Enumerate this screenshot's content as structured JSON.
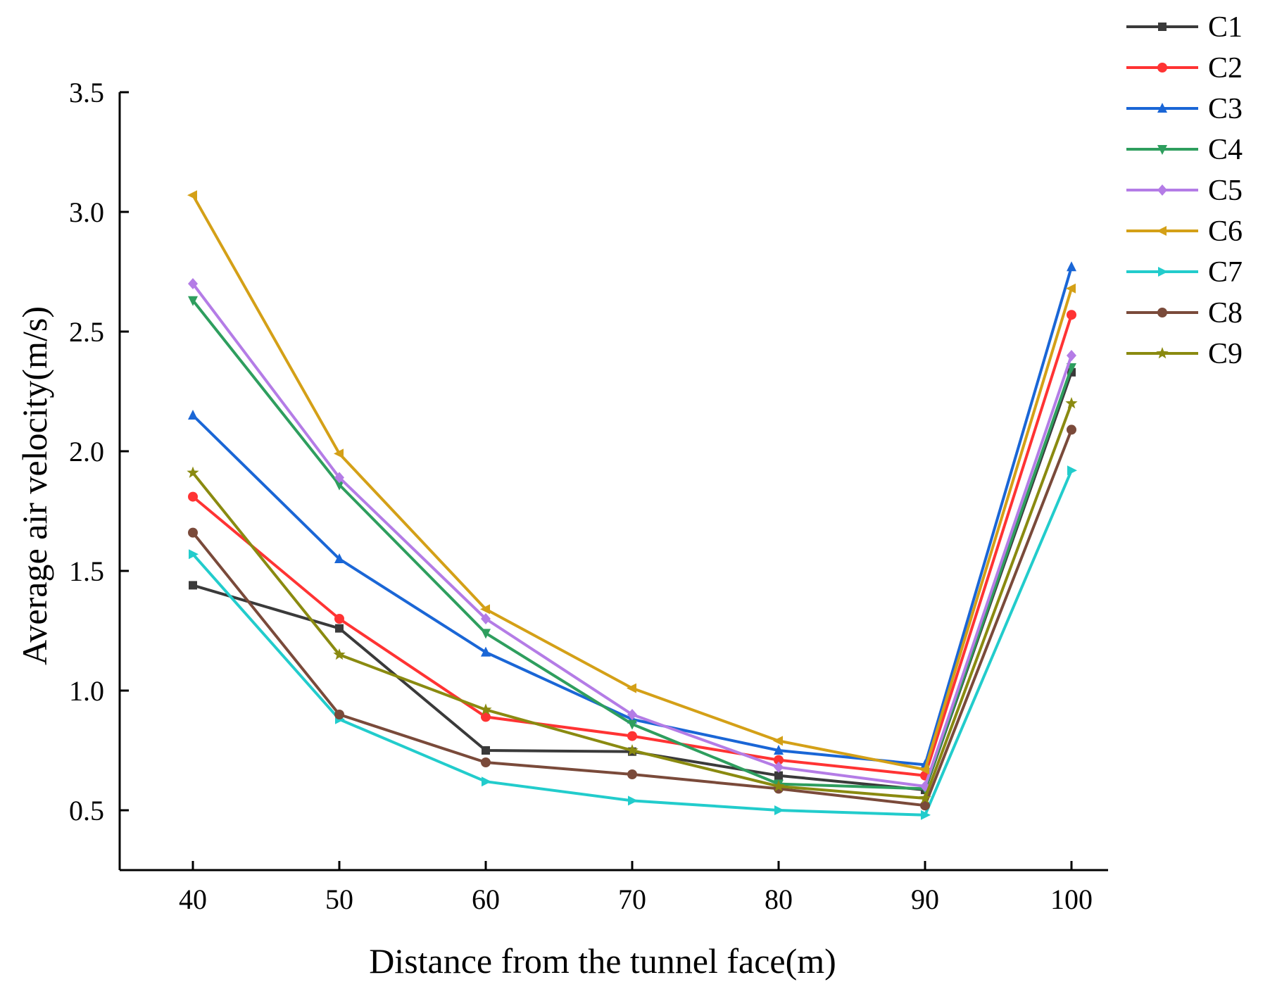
{
  "chart_data": {
    "type": "line",
    "title": "",
    "xlabel": "Distance from the tunnel face(m)",
    "ylabel": "Average air velocity(m/s)",
    "x": [
      40,
      50,
      60,
      70,
      80,
      90,
      100
    ],
    "x_tick_labels": [
      "40",
      "50",
      "60",
      "70",
      "80",
      "90",
      "100"
    ],
    "xlim": [
      35,
      102.5
    ],
    "ylim": [
      0.25,
      3.5
    ],
    "y_ticks": [
      0.5,
      1.0,
      1.5,
      2.0,
      2.5,
      3.0,
      3.5
    ],
    "y_tick_labels": [
      "0.5",
      "1.0",
      "1.5",
      "2.0",
      "2.5",
      "3.0",
      "3.5"
    ],
    "grid": false,
    "legend_position": "top-right",
    "series": [
      {
        "name": "C1",
        "color": "#3a3a3a",
        "marker": "square",
        "values": [
          1.44,
          1.26,
          0.75,
          0.745,
          0.645,
          0.585,
          2.33
        ]
      },
      {
        "name": "C2",
        "color": "#ff3333",
        "marker": "circle",
        "values": [
          1.81,
          1.3,
          0.89,
          0.81,
          0.71,
          0.645,
          2.57
        ]
      },
      {
        "name": "C3",
        "color": "#1a66d6",
        "marker": "triangle-up",
        "values": [
          2.15,
          1.55,
          1.16,
          0.88,
          0.75,
          0.69,
          2.77
        ]
      },
      {
        "name": "C4",
        "color": "#2e9e5e",
        "marker": "triangle-down",
        "values": [
          2.63,
          1.86,
          1.24,
          0.86,
          0.61,
          0.59,
          2.35
        ]
      },
      {
        "name": "C5",
        "color": "#b47ce6",
        "marker": "diamond",
        "values": [
          2.7,
          1.89,
          1.3,
          0.9,
          0.68,
          0.6,
          2.4
        ]
      },
      {
        "name": "C6",
        "color": "#d4a017",
        "marker": "triangle-left",
        "values": [
          3.07,
          1.99,
          1.34,
          1.01,
          0.79,
          0.67,
          2.68
        ]
      },
      {
        "name": "C7",
        "color": "#22cccc",
        "marker": "triangle-right",
        "values": [
          1.57,
          0.88,
          0.62,
          0.54,
          0.5,
          0.48,
          1.92
        ]
      },
      {
        "name": "C8",
        "color": "#7a4a3a",
        "marker": "circle",
        "values": [
          1.66,
          0.9,
          0.7,
          0.65,
          0.59,
          0.52,
          2.09
        ]
      },
      {
        "name": "C9",
        "color": "#8a8a10",
        "marker": "star",
        "values": [
          1.91,
          1.15,
          0.92,
          0.75,
          0.6,
          0.55,
          2.2
        ]
      }
    ]
  }
}
